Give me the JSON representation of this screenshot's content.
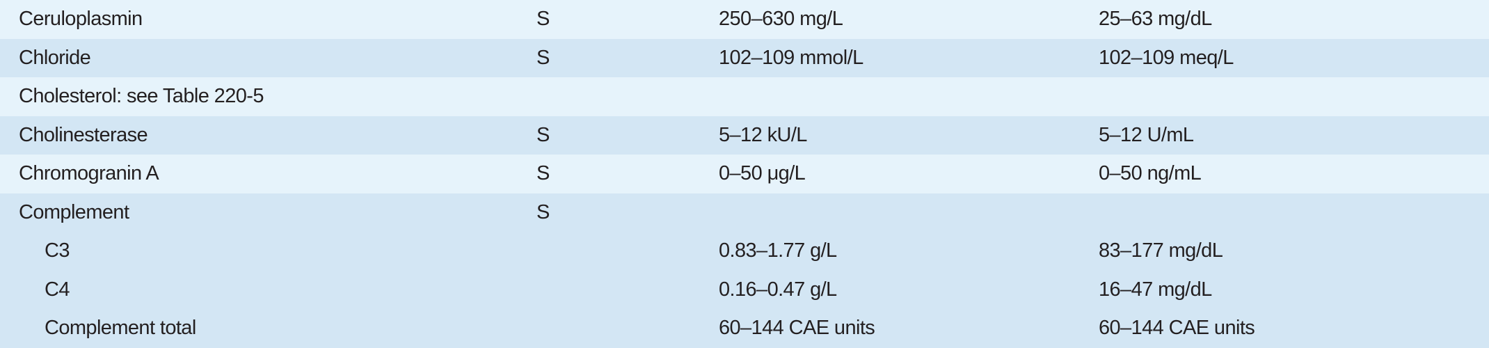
{
  "table": {
    "rows": [
      {
        "analyte": "Ceruloplasmin",
        "specimen": "S",
        "si": "250–630 mg/L",
        "conventional": "25–63 mg/dL"
      },
      {
        "analyte": "Chloride",
        "specimen": "S",
        "si": "102–109 mmol/L",
        "conventional": "102–109 meq/L"
      },
      {
        "analyte": "Cholesterol: see Table 220-5"
      },
      {
        "analyte": "Cholinesterase",
        "specimen": "S",
        "si": "5–12 kU/L",
        "conventional": "5–12 U/mL"
      },
      {
        "analyte": "Chromogranin A",
        "specimen": "S",
        "si": "0–50 μg/L",
        "conventional": "0–50 ng/mL"
      },
      {
        "analyte": "Complement",
        "specimen": "S",
        "subrows": [
          {
            "analyte": "C3",
            "si": "0.83–1.77 g/L",
            "conventional": "83–177 mg/dL"
          },
          {
            "analyte": "C4",
            "si": "0.16–0.47 g/L",
            "conventional": "16–47 mg/dL"
          },
          {
            "analyte": "Complement total",
            "si": "60–144 CAE units",
            "conventional": "60–144 CAE units"
          }
        ]
      }
    ]
  }
}
